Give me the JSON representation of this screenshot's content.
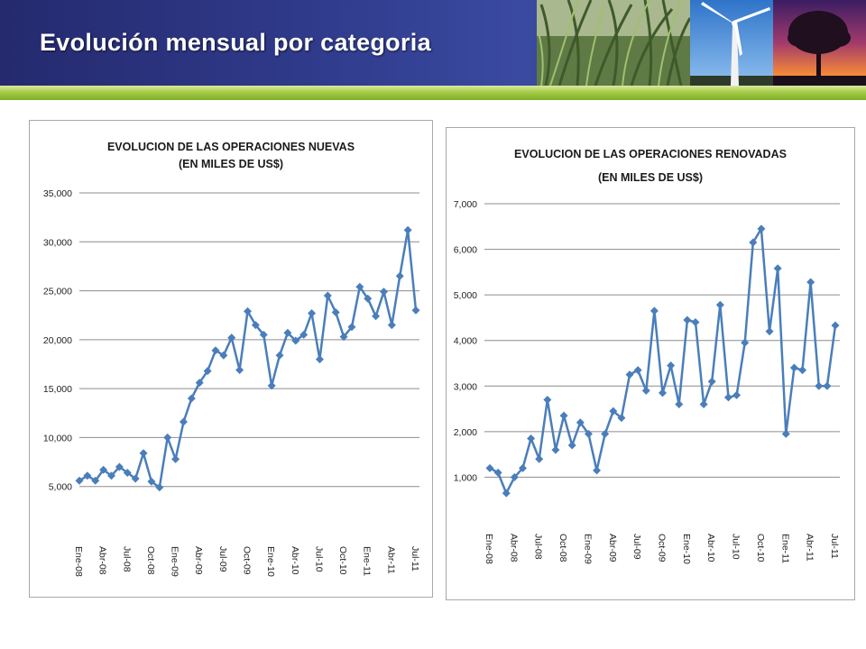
{
  "slide": {
    "title": "Evolución mensual por categoria",
    "photos": [
      "grass-photo",
      "wind-turbine-photo",
      "tree-sunset-photo"
    ]
  },
  "chart_data": [
    {
      "type": "line",
      "title": "EVOLUCION DE LAS OPERACIONES NUEVAS",
      "subtitle": "(EN MILES DE US$)",
      "ylim": [
        0,
        35000
      ],
      "yticks": [
        5000,
        10000,
        15000,
        20000,
        25000,
        30000,
        35000
      ],
      "ytick_labels": [
        "5,000",
        "10,000",
        "15,000",
        "20,000",
        "25,000",
        "30,000",
        "35,000"
      ],
      "xtick_labels": [
        "Ene-08",
        "Abr-08",
        "Jul-08",
        "Oct-08",
        "Ene-09",
        "Abr-09",
        "Jul-09",
        "Oct-09",
        "Ene-10",
        "Abr-10",
        "Jul-10",
        "Oct-10",
        "Ene-11",
        "Abr-11",
        "Jul-11"
      ],
      "grid": true,
      "color": "#4a7ebb",
      "series": [
        {
          "values": [
            5600,
            6100,
            5600,
            6700,
            6100,
            7000,
            6400,
            5800,
            8400,
            5500,
            4900,
            10000,
            7800,
            11600,
            14000,
            15600,
            16800,
            18900,
            18400,
            20200,
            16900,
            22900,
            21500,
            20500,
            15300,
            18400,
            20700,
            19900,
            20500,
            22700,
            18000,
            24500,
            22800,
            20300,
            21300,
            25400,
            24200,
            22400,
            24900,
            21500,
            26500,
            31200,
            23000
          ]
        }
      ]
    },
    {
      "type": "line",
      "title": "EVOLUCION DE LAS OPERACIONES RENOVADAS",
      "subtitle": "(EN MILES DE US$)",
      "ylim": [
        0,
        7000
      ],
      "yticks": [
        1000,
        2000,
        3000,
        4000,
        5000,
        6000,
        7000
      ],
      "ytick_labels": [
        "1,000",
        "2,000",
        "3,000",
        "4,000",
        "5,000",
        "6,000",
        "7,000"
      ],
      "xtick_labels": [
        "Ene-08",
        "Abr-08",
        "Jul-08",
        "Oct-08",
        "Ene-09",
        "Abr-09",
        "Jul-09",
        "Oct-09",
        "Ene-10",
        "Abr-10",
        "Jul-10",
        "Oct-10",
        "Ene-11",
        "Abr-11",
        "Jul-11"
      ],
      "grid": true,
      "color": "#4a7ebb",
      "series": [
        {
          "values": [
            1200,
            1100,
            650,
            1000,
            1200,
            1850,
            1400,
            2700,
            1600,
            2350,
            1700,
            2200,
            1950,
            1150,
            1950,
            2450,
            2300,
            3250,
            3350,
            2900,
            4650,
            2850,
            3450,
            2600,
            4450,
            4400,
            2600,
            3100,
            4780,
            2750,
            2800,
            3950,
            6150,
            6450,
            4200,
            5580,
            1950,
            3400,
            3350,
            5280,
            3000,
            3000,
            4330
          ]
        }
      ]
    }
  ]
}
